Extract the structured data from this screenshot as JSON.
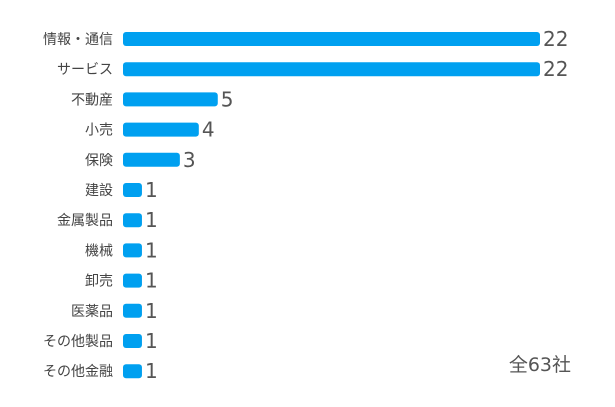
{
  "chart_data": {
    "type": "bar",
    "orientation": "horizontal",
    "categories": [
      "情報・通信",
      "サービス",
      "不動産",
      "小売",
      "保険",
      "建設",
      "金属製品",
      "機械",
      "卸売",
      "医薬品",
      "その他製品",
      "その他金融"
    ],
    "values": [
      22,
      22,
      5,
      4,
      3,
      1,
      1,
      1,
      1,
      1,
      1,
      1
    ],
    "value_labels": [
      "22",
      "22",
      "5",
      "4",
      "3",
      "1",
      "1",
      "1",
      "1",
      "1",
      "1",
      "1"
    ],
    "xlim": [
      0,
      22
    ],
    "bar_color": "#00a0f0",
    "grid": false,
    "annotation": "全63社"
  }
}
